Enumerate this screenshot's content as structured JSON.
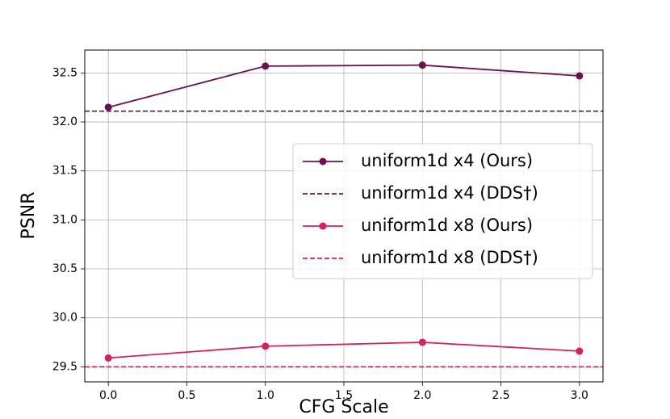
{
  "chart_data": {
    "type": "line",
    "x": [
      0,
      1,
      2,
      3
    ],
    "xlabel": "CFG Scale",
    "ylabel": "PSNR",
    "xlim": [
      -0.15,
      3.15
    ],
    "xticks": [
      {
        "value": 0,
        "label": "0.0"
      },
      0.5,
      {
        "value": 1,
        "label": "1.0"
      },
      1.5,
      {
        "value": 2,
        "label": "2.0"
      },
      2.5,
      {
        "value": 3,
        "label": "3.0"
      }
    ],
    "ylim": [
      29.346,
      32.734
    ],
    "yticks": [
      29.5,
      {
        "value": 30,
        "label": "30.0"
      },
      30.5,
      {
        "value": 31,
        "label": "31.0"
      },
      31.5,
      {
        "value": 32,
        "label": "32.0"
      },
      32.5
    ],
    "grid": true,
    "legend": "center right",
    "series": [
      {
        "name": "uniform1d x4 (Ours)",
        "color": "#6b1152",
        "values": [
          32.15,
          32.57,
          32.58,
          32.47
        ]
      },
      {
        "name": "uniform1d x4 (DDS†)",
        "color": "#6b1152",
        "style": "dashed",
        "value": 32.11
      },
      {
        "name": "uniform1d x8 (Ours)",
        "color": "#d81f60",
        "values": [
          29.59,
          29.71,
          29.75,
          29.66
        ]
      },
      {
        "name": "uniform1d x8 (DDS†)",
        "color": "#d81f60",
        "style": "dashed",
        "value": 29.5
      }
    ]
  }
}
